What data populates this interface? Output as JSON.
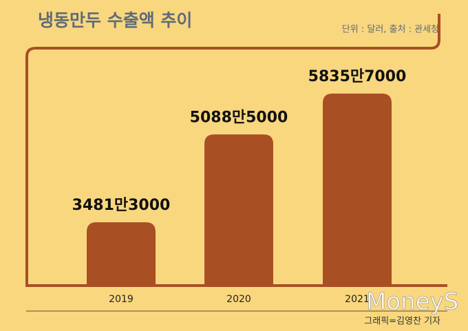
{
  "chart_data": {
    "type": "bar",
    "title": "냉동만두 수출액 추이",
    "subtitle": "단위 : 달러, 출처 : 관세청",
    "categories": [
      "2019",
      "2020",
      "2021"
    ],
    "values": [
      34813000,
      50885000,
      58357000
    ],
    "value_labels": [
      "3481만3000",
      "5088만5000",
      "5835만7000"
    ],
    "color": "#a84f24",
    "credit": "그래픽=김영찬 기자",
    "watermark": "MoneyS"
  }
}
